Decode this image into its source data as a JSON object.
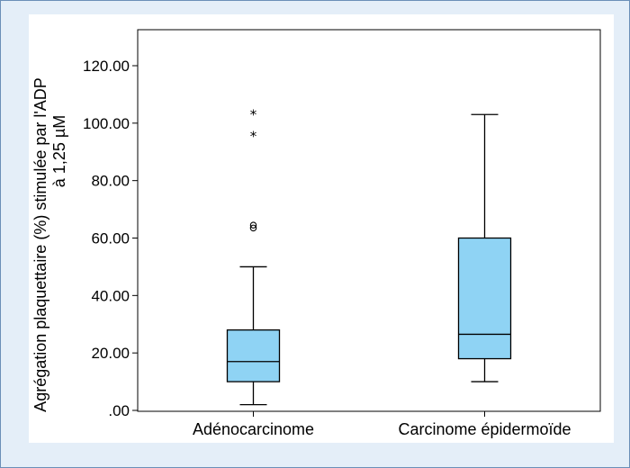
{
  "chart_data": {
    "type": "boxplot",
    "ylabel_line1": "Agrégation plaquettaire (%) stimulée par l'ADP",
    "ylabel_line2": "à 1,25 µM",
    "ylim": [
      0,
      120
    ],
    "yticks": [
      0,
      20,
      40,
      60,
      80,
      100,
      120
    ],
    "ytick_labels": [
      ".00",
      "20.00",
      "40.00",
      "60.00",
      "80.00",
      "100.00",
      "120.00"
    ],
    "categories": [
      "Adénocarcinome",
      "Carcinome épidermoïde"
    ],
    "boxes": [
      {
        "category": "Adénocarcinome",
        "whisker_low": 2,
        "q1": 10,
        "median": 17,
        "q3": 28,
        "whisker_high": 50,
        "outliers_circle": [
          63.5,
          64.5
        ],
        "outliers_star": [
          96,
          103.5
        ]
      },
      {
        "category": "Carcinome épidermoïde",
        "whisker_low": 10,
        "q1": 18,
        "median": 26.5,
        "q3": 60,
        "whisker_high": 103,
        "outliers_circle": [],
        "outliers_star": []
      }
    ],
    "box_fill": "#8fd3f4",
    "line_color": "#000000",
    "grid": false,
    "legend": "none"
  }
}
